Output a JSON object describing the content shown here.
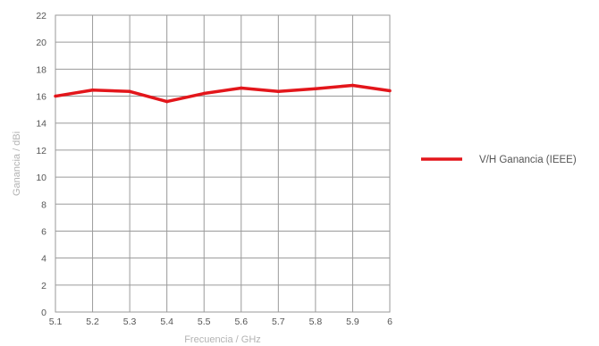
{
  "chart_data": {
    "type": "line",
    "title": "",
    "xlabel": "Frecuencia / GHz",
    "ylabel": "Ganancia / dBi",
    "x": [
      5.1,
      5.2,
      5.3,
      5.4,
      5.5,
      5.6,
      5.7,
      5.8,
      5.9,
      6.0
    ],
    "x_tick_labels": [
      "5.1",
      "5.2",
      "5.3",
      "5.4",
      "5.5",
      "5.6",
      "5.7",
      "5.8",
      "5.9",
      "6"
    ],
    "xlim": [
      5.1,
      6.0
    ],
    "ylim": [
      0,
      22
    ],
    "y_ticks": [
      0,
      2,
      4,
      6,
      8,
      10,
      12,
      14,
      16,
      18,
      20,
      22
    ],
    "grid": true,
    "legend_position": "right",
    "series": [
      {
        "name": "V/H Ganancia (IEEE)",
        "color": "#e3161b",
        "values": [
          16.0,
          16.45,
          16.35,
          15.6,
          16.2,
          16.6,
          16.35,
          16.55,
          16.8,
          16.4
        ]
      }
    ]
  }
}
